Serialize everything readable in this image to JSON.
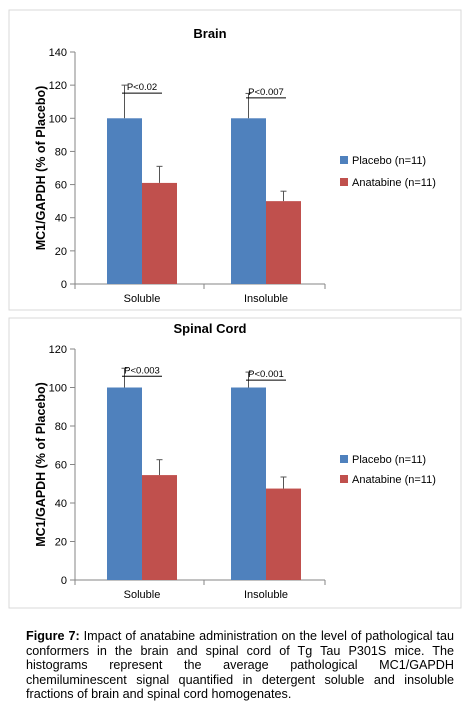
{
  "chart_data": [
    {
      "type": "bar",
      "title": "Brain",
      "ylabel": "MC1/GAPDH (% of Placebo)",
      "xlabel": "",
      "categories": [
        "Soluble",
        "Insoluble"
      ],
      "ylim": [
        0,
        140
      ],
      "yticks": [
        0,
        20,
        40,
        60,
        80,
        100,
        120,
        140
      ],
      "grid": false,
      "legend_position": "right",
      "series": [
        {
          "name": "Placebo (n=11)",
          "color": "#4f81bd",
          "values": [
            100,
            100
          ],
          "errors": [
            20,
            15
          ]
        },
        {
          "name": "Anatabine (n=11)",
          "color": "#c0504d",
          "values": [
            61,
            50
          ],
          "errors": [
            10,
            6
          ]
        }
      ],
      "annotations": [
        "P<0.02",
        "P<0.007"
      ]
    },
    {
      "type": "bar",
      "title": "Spinal Cord",
      "ylabel": "MC1/GAPDH (% of Placebo)",
      "xlabel": "",
      "categories": [
        "Soluble",
        "Insoluble"
      ],
      "ylim": [
        0,
        120
      ],
      "yticks": [
        0,
        20,
        40,
        60,
        80,
        100,
        120
      ],
      "grid": false,
      "legend_position": "right",
      "series": [
        {
          "name": "Placebo (n=11)",
          "color": "#4f81bd",
          "values": [
            100,
            100
          ],
          "errors": [
            10,
            8
          ]
        },
        {
          "name": "Anatabine (n=11)",
          "color": "#c0504d",
          "values": [
            54.5,
            47.5
          ],
          "errors": [
            8,
            6
          ]
        }
      ],
      "annotations": [
        "P<0.003",
        "P<0.001"
      ]
    }
  ],
  "caption": {
    "label": "Figure 7:",
    "text": " Impact of anatabine administration on the level of pathological tau conformers in the brain and spinal cord of Tg Tau P301S mice. The histograms represent the average pathological MC1/GAPDH  chemiluminescent signal quantified in detergent soluble and insoluble fractions of brain and spinal cord homogenates."
  }
}
